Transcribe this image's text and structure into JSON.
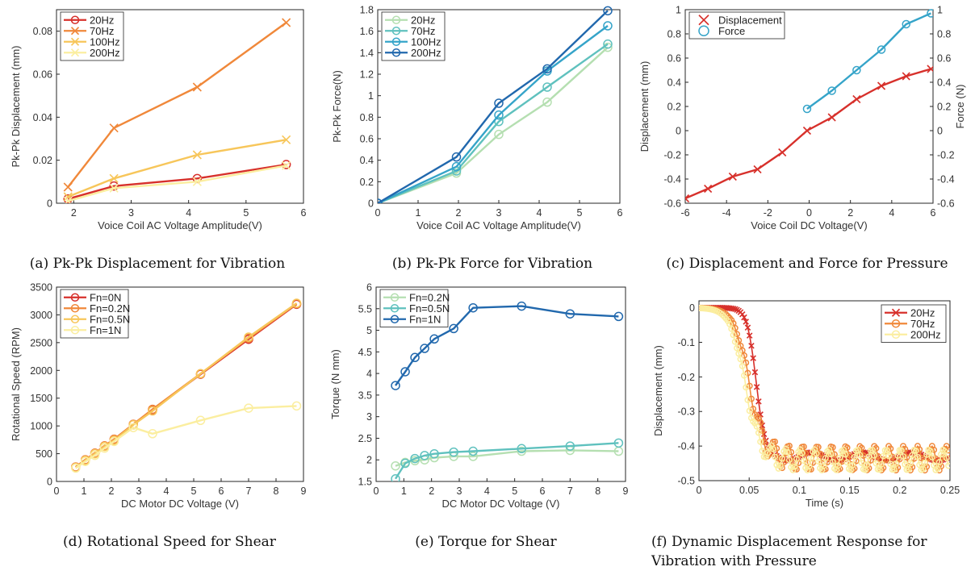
{
  "figure": {
    "colors": {
      "red": "#d7302b",
      "orange": "#f0883a",
      "yellow": "#f7c65a",
      "paleyellow": "#fbeea0",
      "mint": "#b5dfb1",
      "teal": "#5fc1be",
      "cyan": "#35a4c9",
      "blue": "#2168ad"
    }
  },
  "chart_data": [
    {
      "id": "a",
      "type": "line",
      "caption": "(a) Pk-Pk Displacement for Vibration",
      "xlabel": "Voice Coil AC Voltage Amplitude(V)",
      "ylabel": "Pk-Pk Displacement (mm)",
      "xlim": [
        1.7,
        6
      ],
      "ylim": [
        0,
        0.09
      ],
      "xticks": [
        2,
        3,
        4,
        5,
        6
      ],
      "yticks": [
        0,
        0.02,
        0.04,
        0.06,
        0.08
      ],
      "ytick_labels": [
        "0",
        "0.02",
        "0.04",
        "0.06",
        "0.08"
      ],
      "legend": "top-left",
      "series": [
        {
          "name": "20Hz",
          "color": "#d7302b",
          "marker": "circle",
          "x": [
            1.9,
            2.7,
            4.15,
            5.7
          ],
          "y": [
            0.002,
            0.008,
            0.0115,
            0.018
          ]
        },
        {
          "name": "70Hz",
          "color": "#f0883a",
          "marker": "x",
          "x": [
            1.9,
            2.7,
            4.15,
            5.7
          ],
          "y": [
            0.0075,
            0.035,
            0.054,
            0.084
          ]
        },
        {
          "name": "100Hz",
          "color": "#f7c65a",
          "marker": "x",
          "x": [
            1.9,
            2.7,
            4.15,
            5.7
          ],
          "y": [
            0.003,
            0.0115,
            0.0225,
            0.0295
          ]
        },
        {
          "name": "200Hz",
          "color": "#fbeea0",
          "marker": "x",
          "x": [
            1.9,
            2.7,
            4.15,
            5.7
          ],
          "y": [
            0.001,
            0.007,
            0.01,
            0.0175
          ]
        }
      ]
    },
    {
      "id": "b",
      "type": "line",
      "caption": "(b) Pk-Pk Force for Vibration",
      "xlabel": "Voice Coil AC Voltage Amplitude(V)",
      "ylabel": "Pk-Pk Force(N)",
      "xlim": [
        0,
        6
      ],
      "ylim": [
        0,
        1.8
      ],
      "xticks": [
        0,
        1,
        2,
        3,
        4,
        5,
        6
      ],
      "yticks": [
        0,
        0.2,
        0.4,
        0.6,
        0.8,
        1.0,
        1.2,
        1.4,
        1.6,
        1.8
      ],
      "ytick_labels": [
        "0",
        "0.2",
        "0.4",
        "0.6",
        "0.8",
        "1",
        "1.2",
        "1.4",
        "1.6",
        "1.8"
      ],
      "legend": "top-left",
      "series": [
        {
          "name": "20Hz",
          "color": "#b5dfb1",
          "marker": "circle",
          "x": [
            0,
            1.95,
            3,
            4.2,
            5.7
          ],
          "y": [
            0,
            0.28,
            0.64,
            0.94,
            1.45
          ]
        },
        {
          "name": "70Hz",
          "color": "#5fc1be",
          "marker": "circle",
          "x": [
            0,
            1.95,
            3,
            4.2,
            5.7
          ],
          "y": [
            0,
            0.3,
            0.76,
            1.08,
            1.48
          ]
        },
        {
          "name": "100Hz",
          "color": "#35a4c9",
          "marker": "circle",
          "x": [
            0,
            1.95,
            3,
            4.2,
            5.7
          ],
          "y": [
            0,
            0.34,
            0.82,
            1.23,
            1.65
          ]
        },
        {
          "name": "200Hz",
          "color": "#2168ad",
          "marker": "circle",
          "x": [
            0,
            1.95,
            3,
            4.2,
            5.7
          ],
          "y": [
            0,
            0.43,
            0.93,
            1.25,
            1.79
          ]
        }
      ]
    },
    {
      "id": "c",
      "type": "line",
      "caption": "(c) Displacement and Force for Pressure",
      "xlabel": "Voice Coil DC Voltage(V)",
      "ylabel": "Displacement (mm)",
      "ylabel_right": "Force (N)",
      "xlim": [
        -6,
        6
      ],
      "ylim": [
        -0.6,
        1.0
      ],
      "ylim_right": [
        -0.6,
        1.0
      ],
      "xticks": [
        -6,
        -4,
        -2,
        0,
        2,
        4,
        6
      ],
      "yticks": [
        -0.6,
        -0.4,
        -0.2,
        0,
        0.2,
        0.4,
        0.6,
        0.8,
        1.0
      ],
      "ytick_labels": [
        "-0.6",
        "-0.4",
        "-0.2",
        "0",
        "0.2",
        "0.4",
        "0.6",
        "0.8",
        "1"
      ],
      "legend": "top-left",
      "series": [
        {
          "name": "Displacement",
          "color": "#d7302b",
          "marker": "x",
          "axis": "left",
          "x": [
            -6,
            -4.9,
            -3.7,
            -2.5,
            -1.3,
            -0.1,
            1.1,
            2.3,
            3.5,
            4.7,
            5.9
          ],
          "y": [
            -0.56,
            -0.48,
            -0.38,
            -0.32,
            -0.18,
            0.0,
            0.11,
            0.26,
            0.37,
            0.45,
            0.51
          ]
        },
        {
          "name": "Force",
          "color": "#35a4c9",
          "marker": "circle",
          "axis": "right",
          "x": [
            -0.1,
            1.1,
            2.3,
            3.5,
            4.7,
            5.9
          ],
          "y": [
            0.18,
            0.33,
            0.5,
            0.67,
            0.88,
            0.97
          ]
        }
      ]
    },
    {
      "id": "d",
      "type": "line",
      "caption": "(d) Rotational Speed for Shear",
      "xlabel": "DC Motor DC Voltage (V)",
      "ylabel": "Rotational Speed (RPM)",
      "xlim": [
        0,
        9
      ],
      "ylim": [
        0,
        3500
      ],
      "xticks": [
        0,
        1,
        2,
        3,
        4,
        5,
        6,
        7,
        8,
        9
      ],
      "yticks": [
        0,
        500,
        1000,
        1500,
        2000,
        2500,
        3000,
        3500
      ],
      "ytick_labels": [
        "0",
        "500",
        "1000",
        "1500",
        "2000",
        "2500",
        "3000",
        "3500"
      ],
      "legend": "top-left",
      "series": [
        {
          "name": "Fn=0N",
          "color": "#d7302b",
          "marker": "circle",
          "x": [
            0.7,
            1.05,
            1.4,
            1.75,
            2.1,
            2.8,
            3.5,
            5.25,
            7.0,
            8.75
          ],
          "y": [
            260,
            390,
            510,
            640,
            760,
            1030,
            1290,
            1930,
            2560,
            3190
          ]
        },
        {
          "name": "Fn=0.2N",
          "color": "#f0883a",
          "marker": "circle",
          "x": [
            0.7,
            1.05,
            1.4,
            1.75,
            2.1,
            2.8,
            3.5,
            5.25,
            7.0,
            8.75
          ],
          "y": [
            260,
            390,
            510,
            640,
            760,
            1030,
            1300,
            1940,
            2580,
            3200
          ]
        },
        {
          "name": "Fn=0.5N",
          "color": "#f7c65a",
          "marker": "circle",
          "x": [
            0.7,
            1.05,
            1.4,
            1.75,
            2.1,
            2.8,
            3.5,
            5.25,
            7.0,
            8.75
          ],
          "y": [
            250,
            380,
            500,
            630,
            740,
            1020,
            1270,
            1940,
            2600,
            3210
          ]
        },
        {
          "name": "Fn=1N",
          "color": "#fbeea0",
          "marker": "circle",
          "x": [
            0.7,
            1.05,
            1.4,
            1.75,
            2.1,
            2.8,
            3.5,
            5.25,
            7.0,
            8.75
          ],
          "y": [
            240,
            360,
            470,
            600,
            720,
            970,
            860,
            1100,
            1320,
            1360
          ]
        }
      ]
    },
    {
      "id": "e",
      "type": "line",
      "caption": "(e) Torque for Shear",
      "xlabel": "DC Motor DC Voltage (V)",
      "ylabel": "Torque (N mm)",
      "xlim": [
        0,
        9
      ],
      "ylim": [
        1.5,
        6
      ],
      "xticks": [
        0,
        1,
        2,
        3,
        4,
        5,
        6,
        7,
        8,
        9
      ],
      "yticks": [
        1.5,
        2,
        2.5,
        3,
        3.5,
        4,
        4.5,
        5,
        5.5,
        6
      ],
      "ytick_labels": [
        "1.5",
        "2",
        "2.5",
        "3",
        "3.5",
        "4",
        "4.5",
        "5",
        "5.5",
        "6"
      ],
      "legend": "top-left",
      "series": [
        {
          "name": "Fn=0.2N",
          "color": "#b5dfb1",
          "marker": "circle",
          "x": [
            0.7,
            1.05,
            1.4,
            1.75,
            2.1,
            2.8,
            3.5,
            5.25,
            7.0,
            8.75
          ],
          "y": [
            1.86,
            1.94,
            1.98,
            2.0,
            2.05,
            2.08,
            2.08,
            2.2,
            2.22,
            2.2
          ]
        },
        {
          "name": "Fn=0.5N",
          "color": "#5fc1be",
          "marker": "circle",
          "x": [
            0.7,
            1.05,
            1.4,
            1.75,
            2.1,
            2.8,
            3.5,
            5.25,
            7.0,
            8.75
          ],
          "y": [
            1.56,
            1.92,
            2.03,
            2.1,
            2.14,
            2.18,
            2.2,
            2.26,
            2.32,
            2.39
          ]
        },
        {
          "name": "Fn=1N",
          "color": "#2168ad",
          "marker": "circle",
          "x": [
            0.7,
            1.05,
            1.4,
            1.75,
            2.1,
            2.8,
            3.5,
            5.25,
            7.0,
            8.75
          ],
          "y": [
            3.72,
            4.04,
            4.37,
            4.58,
            4.8,
            5.04,
            5.52,
            5.56,
            5.38,
            5.32
          ]
        }
      ]
    },
    {
      "id": "f",
      "type": "line",
      "caption_lines": [
        "(f) Dynamic Displacement Response for",
        "Vibration with Pressure"
      ],
      "xlabel": "Time (s)",
      "ylabel": "Displacement (mm)",
      "xlim": [
        0,
        0.25
      ],
      "ylim": [
        -0.5,
        0.02
      ],
      "xticks": [
        0,
        0.05,
        0.1,
        0.15,
        0.2,
        0.25
      ],
      "xtick_labels": [
        "0",
        "0.05",
        "0.1",
        "0.15",
        "0.2",
        "0.25"
      ],
      "yticks": [
        -0.5,
        -0.4,
        -0.3,
        -0.2,
        -0.1,
        0
      ],
      "ytick_labels": [
        "-0.5",
        "-0.4",
        "-0.3",
        "-0.2",
        "-0.1",
        "0"
      ],
      "legend": "top-right",
      "series": [
        {
          "name": "20Hz",
          "color": "#d7302b",
          "marker": "x"
        },
        {
          "name": "70Hz",
          "color": "#f0883a",
          "marker": "circle"
        },
        {
          "name": "200Hz",
          "color": "#fbeea0",
          "marker": "circle"
        }
      ]
    }
  ]
}
